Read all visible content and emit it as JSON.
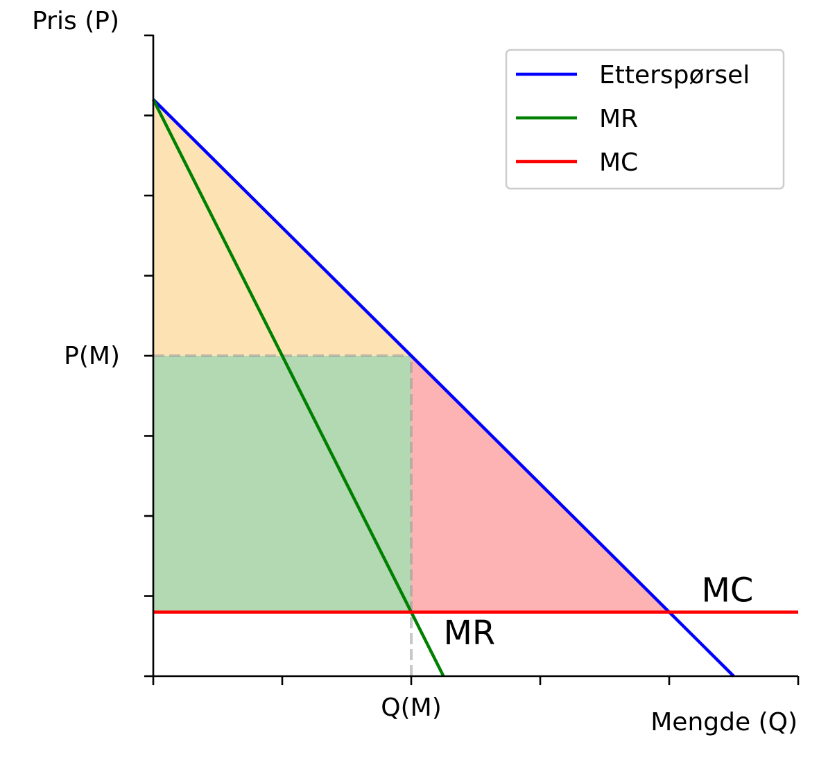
{
  "chart_data": {
    "type": "line",
    "xlabel": "Mengde (Q)",
    "ylabel": "Pris (P)",
    "xlim": [
      0,
      10
    ],
    "ylim": [
      0,
      8
    ],
    "x_ticks": [
      0,
      2,
      4,
      6,
      8,
      10
    ],
    "y_ticks": [
      0,
      1,
      2,
      3,
      4,
      5,
      6,
      7,
      8
    ],
    "x_tick_labels": [
      {
        "x": 4,
        "label": "Q(M)"
      }
    ],
    "y_tick_labels": [
      {
        "y": 4,
        "label": "P(M)"
      }
    ],
    "grid": false,
    "legend": {
      "position": "top-right",
      "entries": [
        "Etterspørsel",
        "MR",
        "MC"
      ]
    },
    "series": [
      {
        "name": "Etterspørsel",
        "color": "#0000ff",
        "x": [
          0,
          9
        ],
        "y": [
          7.2,
          0
        ]
      },
      {
        "name": "MR",
        "color": "#008000",
        "x": [
          0,
          4.5
        ],
        "y": [
          7.2,
          0
        ]
      },
      {
        "name": "MC",
        "color": "#ff0000",
        "x": [
          0,
          10
        ],
        "y": [
          0.8,
          0.8
        ]
      }
    ],
    "shaded_regions": [
      {
        "color": "#fde3b3",
        "points": [
          [
            0,
            7.2
          ],
          [
            0,
            4
          ],
          [
            4,
            4
          ]
        ]
      },
      {
        "color": "#b2d9b2",
        "points": [
          [
            0,
            4
          ],
          [
            4,
            4
          ],
          [
            4,
            0.8
          ],
          [
            0,
            0.8
          ]
        ]
      },
      {
        "color": "#fdb3b3",
        "points": [
          [
            4,
            4
          ],
          [
            4,
            0.8
          ],
          [
            8,
            0.8
          ]
        ]
      }
    ],
    "reference_lines": [
      {
        "color": "#999999",
        "x": [
          0,
          4
        ],
        "y": [
          4,
          4
        ]
      },
      {
        "color": "#999999",
        "x": [
          4,
          4
        ],
        "y": [
          0,
          4
        ]
      }
    ],
    "annotations": [
      {
        "text": "MC",
        "x": 8.5,
        "y": 0.93
      },
      {
        "text": "MR",
        "x": 4.5,
        "y": 0.4
      }
    ]
  }
}
